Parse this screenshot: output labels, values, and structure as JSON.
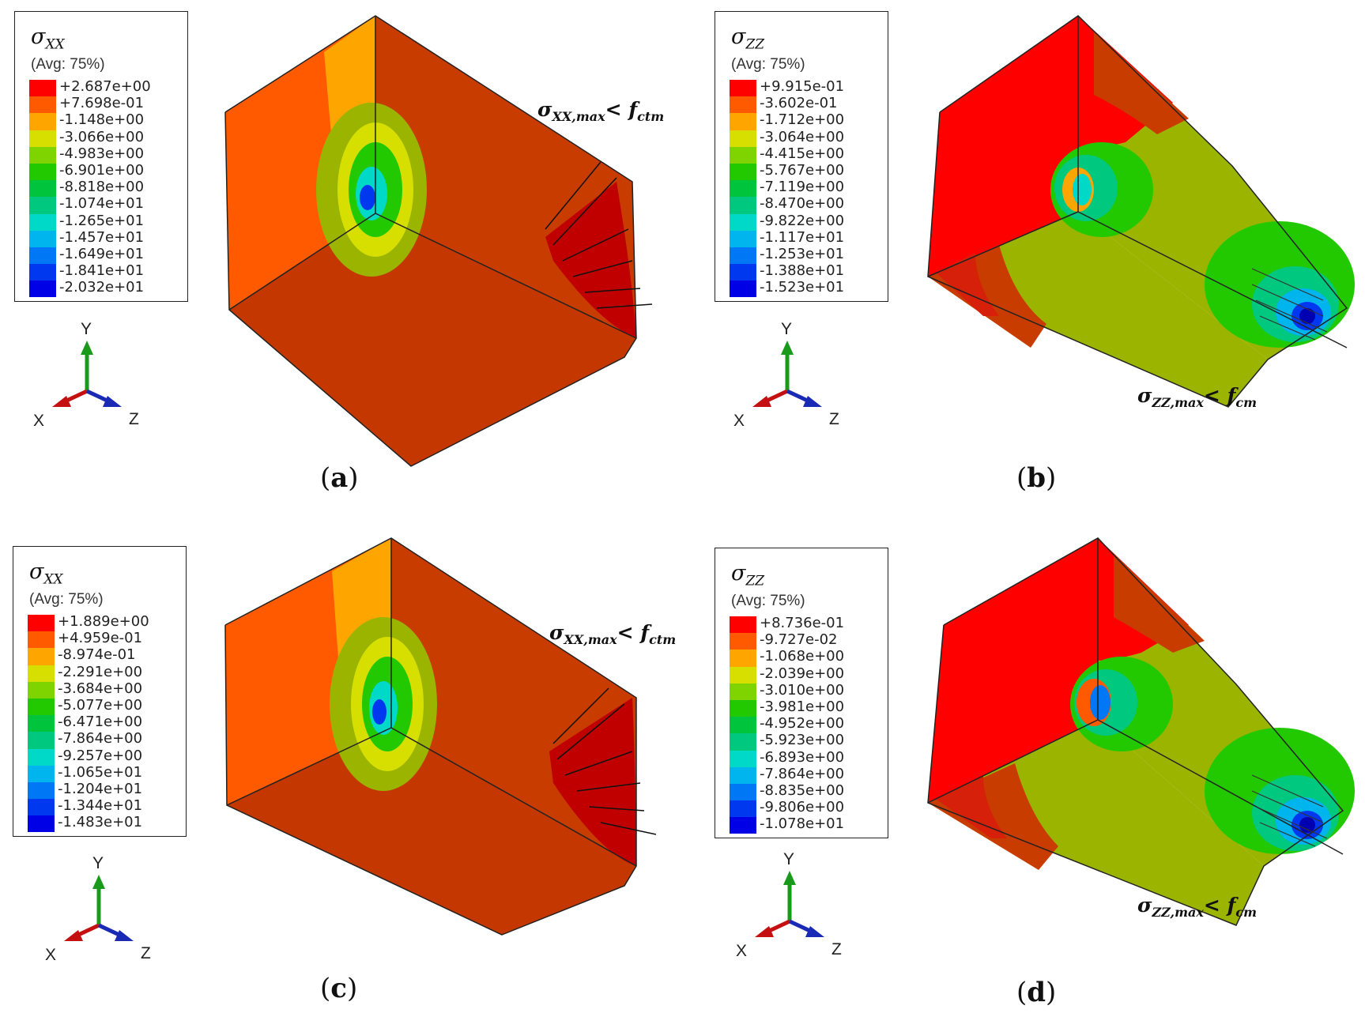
{
  "panels": [
    {
      "id": "a",
      "legend": {
        "symbol": "σ",
        "subscript": "XX",
        "avg": "(Avg: 75%)",
        "values": [
          "+2.687e+00",
          "+7.698e-01",
          "-1.148e+00",
          "-3.066e+00",
          "-4.983e+00",
          "-6.901e+00",
          "-8.818e+00",
          "-1.074e+01",
          "-1.265e+01",
          "-1.457e+01",
          "-1.649e+01",
          "-1.841e+01",
          "-2.032e+01"
        ]
      },
      "axes": {
        "y": "Y",
        "x": "X",
        "z": "Z"
      },
      "annotation": {
        "main": "σ",
        "sub": "XX,max",
        "op": "< ",
        "f": "f",
        "fsub": "ctm"
      },
      "caption": {
        "open": "(",
        "letter": "a",
        "close": ")"
      }
    },
    {
      "id": "b",
      "legend": {
        "symbol": "σ",
        "subscript": "ZZ",
        "avg": "(Avg: 75%)",
        "values": [
          "+9.915e-01",
          "-3.602e-01",
          "-1.712e+00",
          "-3.064e+00",
          "-4.415e+00",
          "-5.767e+00",
          "-7.119e+00",
          "-8.470e+00",
          "-9.822e+00",
          "-1.117e+01",
          "-1.253e+01",
          "-1.388e+01",
          "-1.523e+01"
        ]
      },
      "axes": {
        "y": "Y",
        "x": "X",
        "z": "Z"
      },
      "annotation": {
        "main": "σ",
        "sub": "ZZ,max",
        "op": "< ",
        "f": "f",
        "fsub": "cm"
      },
      "caption": {
        "open": "(",
        "letter": "b",
        "close": ")"
      }
    },
    {
      "id": "c",
      "legend": {
        "symbol": "σ",
        "subscript": "XX",
        "avg": "(Avg: 75%)",
        "values": [
          "+1.889e+00",
          "+4.959e-01",
          "-8.974e-01",
          "-2.291e+00",
          "-3.684e+00",
          "-5.077e+00",
          "-6.471e+00",
          "-7.864e+00",
          "-9.257e+00",
          "-1.065e+01",
          "-1.204e+01",
          "-1.344e+01",
          "-1.483e+01"
        ]
      },
      "axes": {
        "y": "Y",
        "x": "X",
        "z": "Z"
      },
      "annotation": {
        "main": "σ",
        "sub": "XX,max",
        "op": "< ",
        "f": "f",
        "fsub": "ctm"
      },
      "caption": {
        "open": "(",
        "letter": "c",
        "close": ")"
      }
    },
    {
      "id": "d",
      "legend": {
        "symbol": "σ",
        "subscript": "ZZ",
        "avg": "(Avg: 75%)",
        "values": [
          "+8.736e-01",
          "-9.727e-02",
          "-1.068e+00",
          "-2.039e+00",
          "-3.010e+00",
          "-3.981e+00",
          "-4.952e+00",
          "-5.923e+00",
          "-6.893e+00",
          "-7.864e+00",
          "-8.835e+00",
          "-9.806e+00",
          "-1.078e+01"
        ]
      },
      "axes": {
        "y": "Y",
        "x": "X",
        "z": "Z"
      },
      "annotation": {
        "main": "σ",
        "sub": "ZZ,max",
        "op": "< ",
        "f": "f",
        "fsub": "cm"
      },
      "caption": {
        "open": "(",
        "letter": "d",
        "close": ")"
      }
    }
  ],
  "colormap": [
    "#ff0000",
    "#ff5a00",
    "#ffa500",
    "#d7df00",
    "#7fd400",
    "#22c900",
    "#00c43c",
    "#00c87f",
    "#00d8c8",
    "#00b4ee",
    "#0078f5",
    "#0038f0",
    "#0000e6"
  ],
  "model_colors": {
    "background_red": "#c83c00",
    "tension_red": "#c00000",
    "green_yellow": "#9ab400",
    "arrow": "#111111"
  }
}
